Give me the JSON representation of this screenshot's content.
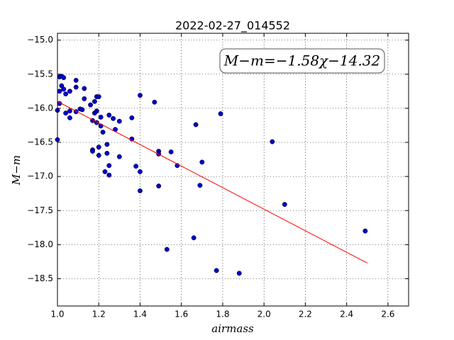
{
  "chart_data": {
    "type": "scatter",
    "title": "2022-02-27_014552",
    "x_label": "airmass",
    "y_label": "M−m",
    "annotation": "M−m=−1.58χ−14.32",
    "xlim": [
      1.0,
      2.7
    ],
    "ylim": [
      -18.9,
      -14.9
    ],
    "xticks": [
      {
        "value": 1.0,
        "label": "1.0"
      },
      1.2,
      1.4,
      1.6,
      1.8,
      {
        "value": 2.0,
        "label": "2.0"
      },
      2.2,
      2.4,
      2.6
    ],
    "yticks": [
      {
        "value": -18.5,
        "label": "−18.5"
      },
      {
        "value": -18,
        "label": "−18.0"
      },
      {
        "value": -17.5,
        "label": "−17.5"
      },
      {
        "value": -17,
        "label": "−17.0"
      },
      {
        "value": -16.5,
        "label": "−16.5"
      },
      {
        "value": -16,
        "label": "−16.0"
      },
      {
        "value": -15.5,
        "label": "−15.5"
      },
      {
        "value": -15,
        "label": "−15.0"
      }
    ],
    "grid": true,
    "series": [
      {
        "color": "#0000cc",
        "x": [
          1.0,
          1.0,
          1.01,
          1.01,
          1.01,
          1.02,
          1.03,
          1.02,
          1.03,
          1.04,
          1.04,
          1.06,
          1.06,
          1.06,
          1.09,
          1.09,
          1.09,
          1.11,
          1.12,
          1.13,
          1.13,
          1.16,
          1.18,
          1.19,
          1.2,
          1.18,
          1.19,
          1.17,
          1.19,
          1.17,
          1.17,
          1.2,
          1.2,
          1.21,
          1.22,
          1.21,
          1.23,
          1.24,
          1.24,
          1.25,
          1.25,
          1.25,
          1.27,
          1.28,
          1.3,
          1.3,
          1.36,
          1.36,
          1.38,
          1.4,
          1.4,
          1.4,
          1.47,
          1.49,
          1.49,
          1.49,
          1.53,
          1.55,
          1.58,
          1.66,
          1.67,
          1.69,
          1.7,
          1.77,
          1.79,
          1.88,
          2.04,
          2.1,
          2.49
        ],
        "values": [
          -16.03,
          -16.46,
          -15.54,
          -15.75,
          -15.93,
          -15.53,
          -15.55,
          -15.67,
          -15.72,
          -15.79,
          -16.07,
          -16.04,
          -16.14,
          -15.75,
          -15.59,
          -15.69,
          -16.05,
          -16.01,
          -16.02,
          -15.71,
          -15.86,
          -15.95,
          -15.9,
          -15.83,
          -15.83,
          -16.07,
          -16.04,
          -16.18,
          -16.21,
          -16.61,
          -16.63,
          -16.57,
          -16.69,
          -16.26,
          -16.35,
          -16.13,
          -16.93,
          -16.53,
          -16.66,
          -16.98,
          -16.84,
          -16.1,
          -16.15,
          -16.31,
          -16.19,
          -16.71,
          -16.14,
          -16.45,
          -16.85,
          -15.81,
          -16.93,
          -17.21,
          -15.91,
          -16.63,
          -16.67,
          -17.14,
          -18.07,
          -16.64,
          -16.84,
          -17.9,
          -16.24,
          -17.13,
          -16.79,
          -18.38,
          -16.08,
          -18.42,
          -16.49,
          -17.41,
          -17.8
        ]
      }
    ],
    "fit": {
      "color": "#ff0000",
      "x": [
        1.0,
        2.5
      ],
      "values": [
        -15.9,
        -18.27
      ]
    }
  }
}
